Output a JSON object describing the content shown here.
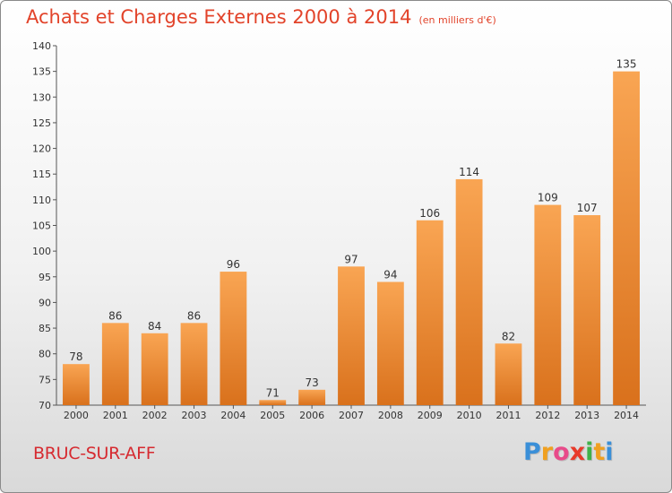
{
  "chart_data": {
    "type": "bar",
    "title": "Achats et Charges Externes 2000 à 2014",
    "subtitle": "(en milliers d'€)",
    "categories": [
      "2000",
      "2001",
      "2002",
      "2003",
      "2004",
      "2005",
      "2006",
      "2007",
      "2008",
      "2009",
      "2010",
      "2011",
      "2012",
      "2013",
      "2014"
    ],
    "values": [
      78,
      86,
      84,
      86,
      96,
      71,
      73,
      97,
      94,
      106,
      114,
      82,
      109,
      107,
      135
    ],
    "ylim": [
      70,
      140
    ],
    "yticks": [
      70,
      75,
      80,
      85,
      90,
      95,
      100,
      105,
      110,
      115,
      120,
      125,
      130,
      135,
      140
    ],
    "grid": false,
    "legend": "none",
    "bar_color": "#f08a2a"
  },
  "footer": {
    "commune": "BRUC-SUR-AFF",
    "logo_letters": [
      "P",
      "r",
      "o",
      "x",
      "i",
      "t",
      "i"
    ],
    "logo_colors": [
      "#3a8fd8",
      "#f0a020",
      "#e84b8a",
      "#e83a2a",
      "#3fb24a",
      "#f0a020",
      "#3a8fd8"
    ]
  }
}
